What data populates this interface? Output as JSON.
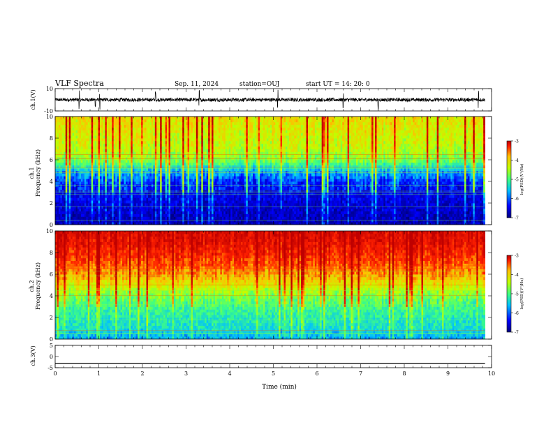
{
  "header": {
    "title": "VLF Spectra",
    "date": "Sep. 11, 2024",
    "station": "station=OUJ",
    "start": "start  UT  =  14: 20: 0"
  },
  "chart_data": [
    {
      "type": "line",
      "panel": "ch1_waveform",
      "ylabel": "ch.1(V)",
      "ylim": [
        -10,
        10
      ],
      "yticks": [
        "10",
        "-10"
      ],
      "baseline_v": 0,
      "noise_amplitude_v": 2,
      "spike_times_min": [
        0.55,
        0.92,
        1.02,
        2.3,
        3.3,
        5.1,
        6.6,
        7.4,
        9.7
      ]
    },
    {
      "type": "heatmap",
      "panel": "ch1_spectrogram",
      "ylabel": "Frequency (kHz)",
      "channel": "ch.1",
      "xlim": [
        0,
        9.85
      ],
      "ylim": [
        0,
        10
      ],
      "yticks": [
        "0",
        "2",
        "4",
        "6",
        "8",
        "10"
      ],
      "z_label": "log(PSD)(V²/Hz)",
      "zlim": [
        -7,
        -3
      ],
      "zticks": [
        "-3",
        "-4",
        "-5",
        "-6",
        "-7"
      ],
      "z_by_frequency_khz": [
        [
          0,
          -6.8
        ],
        [
          1,
          -6.7
        ],
        [
          2,
          -6.6
        ],
        [
          3,
          -6.5
        ],
        [
          4,
          -6.3
        ],
        [
          5,
          -5.8
        ],
        [
          6,
          -5.0
        ],
        [
          7,
          -4.7
        ],
        [
          8,
          -4.6
        ],
        [
          9,
          -4.5
        ],
        [
          10,
          -4.4
        ]
      ]
    },
    {
      "type": "heatmap",
      "panel": "ch2_spectrogram",
      "ylabel": "Frequency (kHz)",
      "channel": "ch.2",
      "xlim": [
        0,
        9.85
      ],
      "ylim": [
        0,
        10
      ],
      "yticks": [
        "0",
        "2",
        "4",
        "6",
        "8",
        "10"
      ],
      "z_label": "log(PSD)(V²/Hz)",
      "zlim": [
        -7,
        -3
      ],
      "zticks": [
        "-3",
        "-4",
        "-5",
        "-6",
        "-7"
      ],
      "z_by_frequency_khz": [
        [
          0,
          -5.9
        ],
        [
          1,
          -5.6
        ],
        [
          2,
          -5.5
        ],
        [
          3,
          -5.3
        ],
        [
          4,
          -5.0
        ],
        [
          5,
          -4.5
        ],
        [
          6,
          -4.0
        ],
        [
          7,
          -3.7
        ],
        [
          8,
          -3.5
        ],
        [
          9,
          -3.3
        ],
        [
          10,
          -3.2
        ]
      ]
    },
    {
      "type": "line",
      "panel": "ch3_waveform",
      "ylabel": "ch.3(V)",
      "ylim": [
        -5,
        5
      ],
      "yticks": [
        "5",
        "0",
        "-5"
      ],
      "constant_value_v": -3
    }
  ],
  "time_axis": {
    "label": "Time  (min)",
    "ticks": [
      "0",
      "1",
      "2",
      "3",
      "4",
      "5",
      "6",
      "7",
      "8",
      "9",
      "10"
    ],
    "xlim": [
      0,
      10
    ]
  },
  "colors": {
    "frame": "#000000",
    "trace": "#000000",
    "colormap": [
      "#00007f",
      "#0000ff",
      "#00c0ff",
      "#40ff80",
      "#c0ff00",
      "#ffc000",
      "#ff2000",
      "#bf0000"
    ]
  }
}
